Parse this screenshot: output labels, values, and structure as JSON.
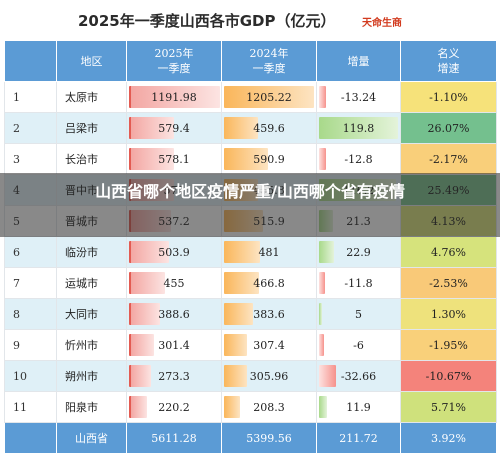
{
  "title": "2025年一季度山西各市GDP（亿元）",
  "brand": "天命生商",
  "overlay_caption": "山西省哪个地区疫情严重/山西哪个省有疫情",
  "columns": {
    "region": "地区",
    "gdp2025": "2025年\n一季度",
    "gdp2024": "2024年\n一季度",
    "increase": "增量",
    "nominal_growth": "名义\n增速"
  },
  "rows": [
    {
      "idx": "1",
      "region": "太原市",
      "gdp2025": "1191.98",
      "gdp2024": "1205.22",
      "increase": "-13.24",
      "growth": "-1.10%",
      "growth_color": "#f6e27a"
    },
    {
      "idx": "2",
      "region": "吕梁市",
      "gdp2025": "579.4",
      "gdp2024": "459.6",
      "increase": "119.8",
      "growth": "26.07%",
      "growth_color": "#74c08e"
    },
    {
      "idx": "3",
      "region": "长治市",
      "gdp2025": "578.1",
      "gdp2024": "590.9",
      "increase": "-12.8",
      "growth": "-2.17%",
      "growth_color": "#f9cf7a"
    },
    {
      "idx": "4",
      "region": "晋中市",
      "gdp2025": "572",
      "gdp2024": "455.8",
      "increase": "116.2",
      "growth": "25.49%",
      "growth_color": "#7dc38f"
    },
    {
      "idx": "5",
      "region": "晋城市",
      "gdp2025": "537.2",
      "gdp2024": "515.9",
      "increase": "21.3",
      "growth": "4.13%",
      "growth_color": "#dbe57c"
    },
    {
      "idx": "6",
      "region": "临汾市",
      "gdp2025": "503.9",
      "gdp2024": "481",
      "increase": "22.9",
      "growth": "4.76%",
      "growth_color": "#d6e37c"
    },
    {
      "idx": "7",
      "region": "运城市",
      "gdp2025": "455",
      "gdp2024": "466.8",
      "increase": "-11.8",
      "growth": "-2.53%",
      "growth_color": "#f9c978"
    },
    {
      "idx": "8",
      "region": "大同市",
      "gdp2025": "388.6",
      "gdp2024": "383.6",
      "increase": "5",
      "growth": "1.30%",
      "growth_color": "#eee27c"
    },
    {
      "idx": "9",
      "region": "忻州市",
      "gdp2025": "301.4",
      "gdp2024": "307.4",
      "increase": "-6",
      "growth": "-1.95%",
      "growth_color": "#f9d07a"
    },
    {
      "idx": "10",
      "region": "朔州市",
      "gdp2025": "273.3",
      "gdp2024": "305.96",
      "increase": "-32.66",
      "growth": "-10.67%",
      "growth_color": "#f4837b"
    },
    {
      "idx": "11",
      "region": "阳泉市",
      "gdp2025": "220.2",
      "gdp2024": "208.3",
      "increase": "11.9",
      "growth": "5.71%",
      "growth_color": "#cfe17c"
    }
  ],
  "total": {
    "region": "山西省",
    "gdp2025": "5611.28",
    "gdp2024": "5399.56",
    "increase": "211.72",
    "growth": "3.92%"
  },
  "scale": {
    "gdp_max": 1205.22,
    "increase_max": 119.8,
    "decrease_max": 32.66
  }
}
